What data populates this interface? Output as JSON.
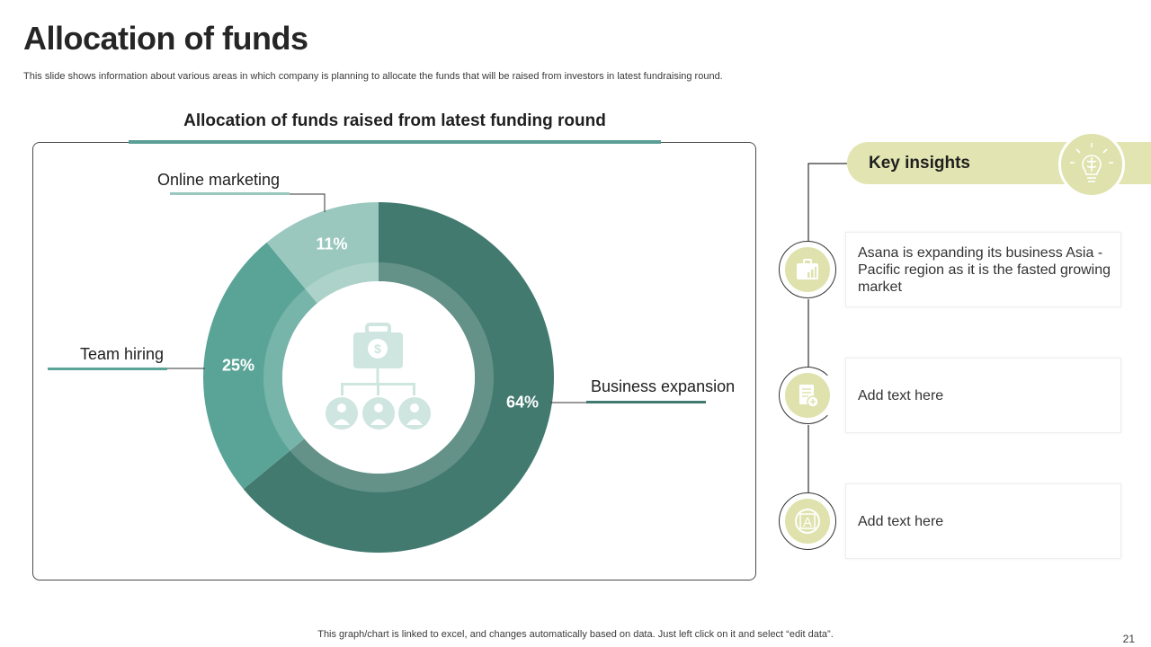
{
  "slide": {
    "title": "Allocation of funds",
    "subtitle": "This slide shows information about various areas in which company is planning to allocate the funds that will be raised from investors in latest fundraising round.",
    "footer": "This graph/chart is linked to excel, and changes automatically based on data. Just left click on it and select “edit data”.",
    "page_number": "21"
  },
  "chart_heading": "Allocation of funds raised from latest funding round",
  "chart_data": {
    "type": "pie",
    "variant": "donut",
    "categories": [
      "Business expansion",
      "Team hiring",
      "Online marketing"
    ],
    "values": [
      64,
      25,
      11
    ],
    "value_labels": [
      "64%",
      "25%",
      "11%"
    ],
    "colors": [
      "#427a70",
      "#5aa497",
      "#9ac8be"
    ],
    "center_icon": "funds-allocation-icon",
    "legend": "callout-labels"
  },
  "insights": {
    "title": "Key insights",
    "header_icon": "lightbulb-brain-icon",
    "items": [
      {
        "text": "Asana is expanding its business Asia - Pacific region as it is the fasted growing market",
        "icon": "briefcase-chart-icon"
      },
      {
        "text": "Add text here",
        "icon": "document-add-icon"
      },
      {
        "text": "Add text here",
        "icon": "design-icon"
      }
    ]
  },
  "colors": {
    "accent_teal": "#5a9e96",
    "dark_teal": "#427a70",
    "olive_light": "#e2e5b1"
  }
}
